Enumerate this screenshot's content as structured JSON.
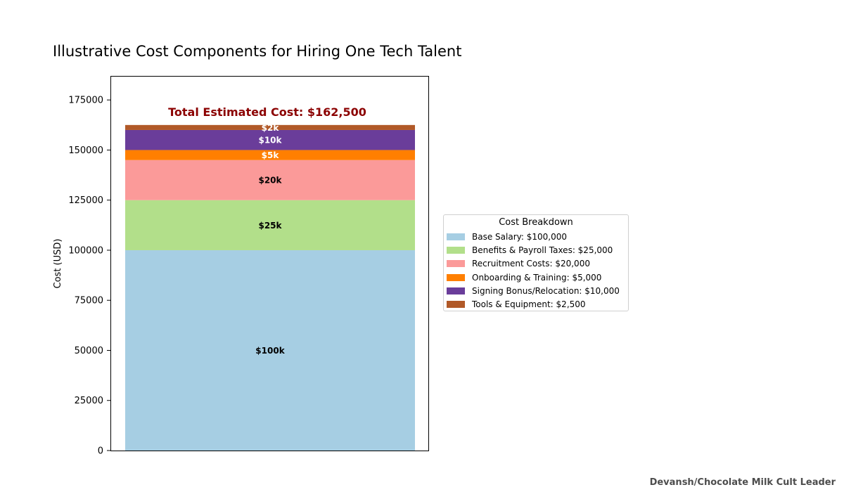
{
  "chart_data": {
    "type": "bar",
    "stacked": true,
    "title": "Illustrative Cost Components for Hiring One Tech Talent",
    "ylabel": "Cost (USD)",
    "xlabel": "",
    "ylim": [
      0,
      187000
    ],
    "yticks": [
      0,
      25000,
      50000,
      75000,
      100000,
      125000,
      150000,
      175000
    ],
    "ytick_labels": [
      "0",
      "25000",
      "50000",
      "75000",
      "100000",
      "125000",
      "150000",
      "175000"
    ],
    "grid": false,
    "legend_placement": "right",
    "total_label": "Total Estimated Cost: $162,500",
    "total_color": "#8b0000",
    "series": [
      {
        "name": "Base Salary",
        "value": 100000,
        "color": "#a6cee3",
        "bar_label": "$100k",
        "label_color": "#000000"
      },
      {
        "name": "Benefits & Payroll Taxes",
        "value": 25000,
        "color": "#b2df8a",
        "bar_label": "$25k",
        "label_color": "#000000"
      },
      {
        "name": "Recruitment Costs",
        "value": 20000,
        "color": "#fb9a99",
        "bar_label": "$20k",
        "label_color": "#000000"
      },
      {
        "name": "Onboarding & Training",
        "value": 5000,
        "color": "#ff7f00",
        "bar_label": "$5k",
        "label_color": "#ffffff"
      },
      {
        "name": "Signing Bonus/Relocation",
        "value": 10000,
        "color": "#6a3d9a",
        "bar_label": "$10k",
        "label_color": "#ffffff"
      },
      {
        "name": "Tools & Equipment",
        "value": 2500,
        "color": "#b15928",
        "bar_label": "$2k",
        "label_color": "#ffffff"
      }
    ]
  },
  "legend": {
    "title": "Cost Breakdown",
    "items": [
      "Base Salary: $100,000",
      "Benefits & Payroll Taxes: $25,000",
      "Recruitment Costs: $20,000",
      "Onboarding & Training: $5,000",
      "Signing Bonus/Relocation: $10,000",
      "Tools & Equipment: $2,500"
    ]
  },
  "footer": "Devansh/Chocolate Milk Cult Leader"
}
